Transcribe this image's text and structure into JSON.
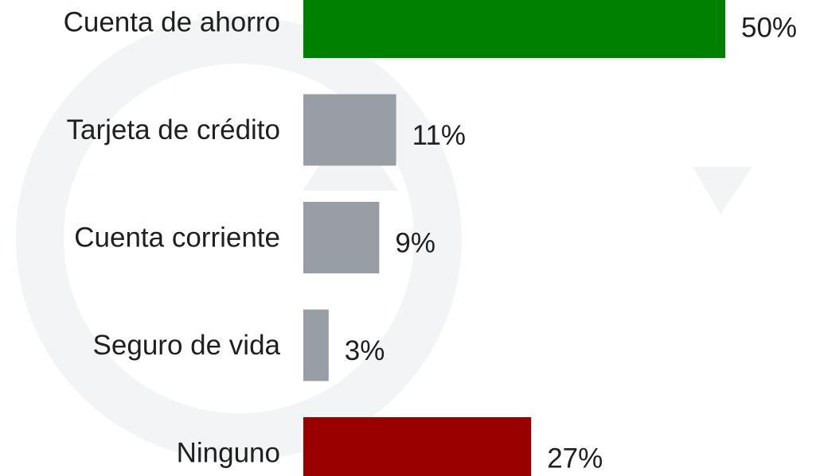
{
  "chart_data": {
    "type": "barh",
    "categories": [
      "Cuenta de ahorro",
      "Tarjeta de crédito",
      "Cuenta corriente",
      "Seguro de vida",
      "Ninguno"
    ],
    "values": [
      50,
      11,
      9,
      3,
      27
    ],
    "value_labels": [
      "50%",
      "11%",
      "9%",
      "3%",
      "27%"
    ],
    "colors": [
      "#008000",
      "#999ea5",
      "#999ea5",
      "#999ea5",
      "#990000"
    ]
  }
}
